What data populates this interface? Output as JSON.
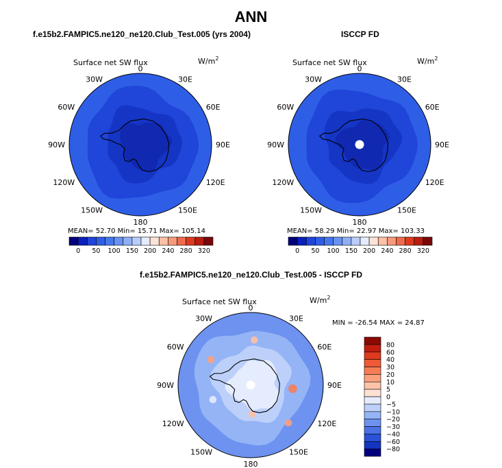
{
  "page_title": "ANN",
  "panels": [
    {
      "header": "f.e15b2.FAMPIC5.ne120_ne120.Club_Test.005 (yrs 2004)",
      "variable": "Surface net SW flux",
      "units": "W/m",
      "units_exp": "2",
      "stats_text": "MEAN=   52.70   Min=   15.71   Max= 105.14"
    },
    {
      "header": "ISCCP FD",
      "variable": "Surface net SW flux",
      "units": "W/m",
      "units_exp": "2",
      "stats_text": "MEAN=   58.29   Min=   22.97   Max= 103.33"
    },
    {
      "header": "f.e15b2.FAMPIC5.ne120_ne120.Club_Test.005 - ISCCP FD",
      "variable": "Surface net SW flux",
      "units": "W/m",
      "units_exp": "2",
      "stats_text": "MIN = -26.54  MAX =  24.87"
    }
  ],
  "chart_data": [
    {
      "type": "heatmap",
      "title": "f.e15b2.FAMPIC5.ne120_ne120.Club_Test.005 (yrs 2004)",
      "variable": "Surface net SW flux",
      "units": "W/m2",
      "projection": "south-polar-stereographic",
      "lon_labels": [
        "0",
        "30E",
        "60E",
        "90E",
        "120E",
        "150E",
        "180",
        "150W",
        "120W",
        "90W",
        "60W",
        "30W"
      ],
      "stats": {
        "mean": 52.7,
        "min": 15.71,
        "max": 105.14
      },
      "colorbar": {
        "ticks": [
          "0",
          "50",
          "100",
          "150",
          "200",
          "240",
          "280",
          "320"
        ],
        "colors": [
          "#00007a",
          "#0a1fbe",
          "#1f45d9",
          "#2f5ee6",
          "#4677ee",
          "#6892f3",
          "#8fb0f6",
          "#b8cdfa",
          "#e4ecfd",
          "#fde3d6",
          "#fbc0a6",
          "#f79a7c",
          "#ef6b4d",
          "#dc3b22",
          "#b81e12",
          "#7a0808"
        ]
      }
    },
    {
      "type": "heatmap",
      "title": "ISCCP FD",
      "variable": "Surface net SW flux",
      "units": "W/m2",
      "projection": "south-polar-stereographic",
      "lon_labels": [
        "0",
        "30E",
        "60E",
        "90E",
        "120E",
        "150E",
        "180",
        "150W",
        "120W",
        "90W",
        "60W",
        "30W"
      ],
      "stats": {
        "mean": 58.29,
        "min": 22.97,
        "max": 103.33
      },
      "colorbar": {
        "ticks": [
          "0",
          "50",
          "100",
          "150",
          "200",
          "240",
          "280",
          "320"
        ],
        "colors": [
          "#00007a",
          "#0a1fbe",
          "#1f45d9",
          "#2f5ee6",
          "#4677ee",
          "#6892f3",
          "#8fb0f6",
          "#b8cdfa",
          "#e4ecfd",
          "#fde3d6",
          "#fbc0a6",
          "#f79a7c",
          "#ef6b4d",
          "#dc3b22",
          "#b81e12",
          "#7a0808"
        ]
      }
    },
    {
      "type": "heatmap",
      "title": "f.e15b2.FAMPIC5.ne120_ne120.Club_Test.005 - ISCCP FD",
      "variable": "Surface net SW flux",
      "units": "W/m2",
      "projection": "south-polar-stereographic",
      "lon_labels": [
        "0",
        "30E",
        "60E",
        "90E",
        "120E",
        "150E",
        "180",
        "150W",
        "120W",
        "90W",
        "60W",
        "30W"
      ],
      "stats": {
        "min": -26.54,
        "max": 24.87
      },
      "colorbar": {
        "orientation": "vertical",
        "ticks": [
          "80",
          "60",
          "40",
          "30",
          "20",
          "10",
          "5",
          "0",
          "−5",
          "−10",
          "−20",
          "−30",
          "−40",
          "−60",
          "−80"
        ],
        "colors": [
          "#8b0a05",
          "#c01e0e",
          "#de3a1d",
          "#f05a36",
          "#f77d57",
          "#fba07e",
          "#fdc3a8",
          "#fde1d2",
          "#e4ecfd",
          "#bcd0fa",
          "#94b4f6",
          "#6d92f0",
          "#4a72e6",
          "#2c52d8",
          "#1335bf",
          "#00007d"
        ]
      }
    }
  ]
}
